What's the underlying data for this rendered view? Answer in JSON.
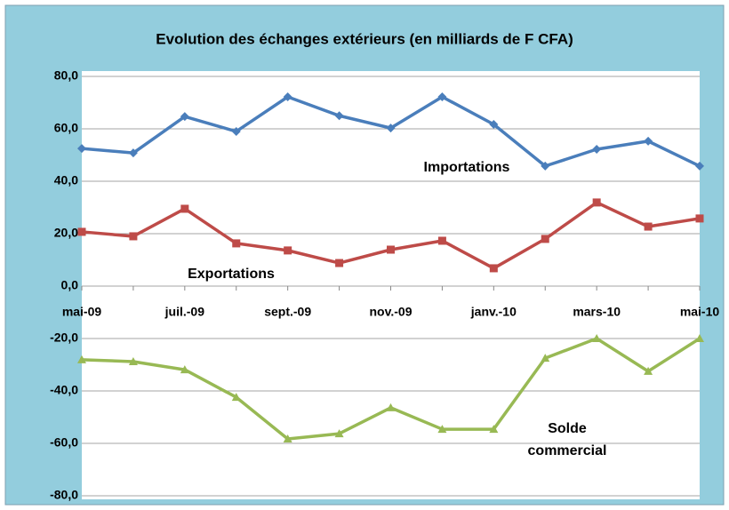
{
  "chart_data": {
    "type": "line",
    "title": "Evolution des échanges extérieurs (en milliards de F CFA)",
    "categories": [
      "mai-09",
      null,
      "juil.-09",
      null,
      "sept.-09",
      null,
      "nov.-09",
      null,
      "janv.-10",
      null,
      "mars-10",
      null,
      "mai-10"
    ],
    "series": [
      {
        "name": "Importations",
        "color": "#4a7ebb",
        "marker": "diamond",
        "values": [
          52.5,
          50.8,
          64.7,
          59.0,
          72.2,
          65.0,
          60.3,
          72.2,
          61.7,
          45.8,
          52.2,
          55.3,
          45.8
        ]
      },
      {
        "name": "Exportations",
        "color": "#be4b48",
        "marker": "square",
        "values": [
          20.7,
          19.0,
          29.5,
          16.3,
          13.6,
          8.8,
          13.9,
          17.3,
          6.8,
          18.0,
          31.9,
          22.7,
          25.8
        ]
      },
      {
        "name": "Solde commercial",
        "color": "#98b954",
        "marker": "triangle",
        "values": [
          -28.1,
          -28.8,
          -31.9,
          -42.4,
          -58.3,
          -56.3,
          -46.4,
          -54.6,
          -54.6,
          -27.5,
          -20.0,
          -32.5,
          -20.0
        ]
      }
    ],
    "ylim": [
      -80,
      80
    ],
    "yticks": [
      {
        "value": -80,
        "label": "-80,0"
      },
      {
        "value": -60,
        "label": "-60,0"
      },
      {
        "value": -40,
        "label": "-40,0"
      },
      {
        "value": -20,
        "label": "-20,0"
      },
      {
        "value": 0,
        "label": "0,0"
      },
      {
        "value": 20,
        "label": "20,0"
      },
      {
        "value": 40,
        "label": "40,0"
      },
      {
        "value": 60,
        "label": "60,0"
      },
      {
        "value": 80,
        "label": "80,0"
      }
    ],
    "grid": true
  }
}
